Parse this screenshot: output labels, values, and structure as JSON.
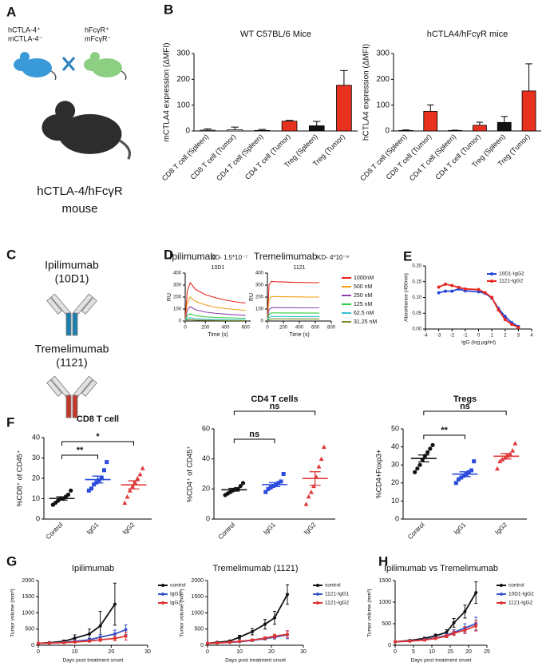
{
  "panel_labels": [
    "A",
    "B",
    "C",
    "D",
    "E",
    "F",
    "G",
    "H"
  ],
  "illustrations": {
    "mouse_left": [
      "hCTLA-4⁺",
      "mCTLA-4⁻"
    ],
    "mouse_right": [
      "hFcγR⁺",
      "mFcγR⁻"
    ],
    "mouse_result": [
      "hCTLA-4/hFcγR",
      "mouse"
    ],
    "antibodies": [
      {
        "name": "Ipilimumab",
        "clone": "(10D1)"
      },
      {
        "name": "Tremelimumab",
        "clone": "(1121)"
      }
    ]
  },
  "chart_data": [
    {
      "type": "bar",
      "title": "WT C57BL/6 Mice",
      "ylabel": "mCTLA4 expression (ΔMFI)",
      "categories": [
        "CD8 T cell (Spleen)",
        "CD8 T cell (Tumor)",
        "CD4 T cell (Spleen)",
        "CD4 T cell (Tumor)",
        "Treg (Spleen)",
        "Treg (Tumor)"
      ],
      "values": [
        3,
        5,
        2,
        38,
        20,
        177
      ],
      "errors": [
        5,
        10,
        4,
        3,
        17,
        57
      ],
      "colors": [
        "#ffffff",
        "#ffffff",
        "#ffffff",
        "#e8311f",
        "#111111",
        "#e8311f"
      ],
      "ylim": [
        0,
        300
      ],
      "yticks": [
        0,
        100,
        200,
        300
      ]
    },
    {
      "type": "bar",
      "title": "hCTLA4/hFcγR mice",
      "ylabel": "hCTLA4 expression (ΔMFI)",
      "categories": [
        "CD8 T cell (Spleen)",
        "CD8 T cell (Tumor)",
        "CD4 T cell (Spleen)",
        "CD4 T cell (Tumor)",
        "Treg (Spleen)",
        "Treg (Tumor)"
      ],
      "values": [
        2,
        76,
        2,
        22,
        33,
        155
      ],
      "errors": [
        2,
        25,
        1,
        12,
        23,
        105
      ],
      "colors": [
        "#ffffff",
        "#e8311f",
        "#ffffff",
        "#e8311f",
        "#111111",
        "#e8311f"
      ],
      "ylim": [
        0,
        300
      ],
      "yticks": [
        0,
        100,
        200,
        300
      ]
    },
    {
      "type": "line",
      "title": "Ipilimumab",
      "annotation": "KD- 1.5*10⁻⁷",
      "subtitle": "10D1",
      "xlabel": "Time (s)",
      "ylabel": "RU",
      "x": [
        0,
        20,
        50,
        100,
        200,
        300,
        400,
        500,
        600
      ],
      "xlim": [
        0,
        650
      ],
      "xticks": [
        0,
        200,
        400,
        600
      ],
      "ylim": [
        0,
        400
      ],
      "yticks": [
        0,
        100,
        200,
        300,
        400
      ],
      "series": [
        {
          "color": "#e8261f",
          "values": [
            0,
            250,
            320,
            265,
            220,
            195,
            175,
            160,
            150
          ]
        },
        {
          "color": "#f39c12",
          "values": [
            0,
            150,
            200,
            165,
            135,
            115,
            105,
            95,
            90
          ]
        },
        {
          "color": "#8e44ad",
          "values": [
            0,
            90,
            120,
            95,
            75,
            65,
            58,
            52,
            48
          ]
        },
        {
          "color": "#2ecc40",
          "values": [
            0,
            45,
            60,
            45,
            35,
            30,
            27,
            25,
            23
          ]
        },
        {
          "color": "#35c0d6",
          "values": [
            0,
            20,
            28,
            20,
            15,
            12,
            10,
            9,
            8
          ]
        },
        {
          "color": "#7d8b25",
          "values": [
            0,
            10,
            12,
            8,
            6,
            5,
            4,
            4,
            3
          ]
        }
      ]
    },
    {
      "type": "line",
      "title": "Tremelimumab",
      "annotation": "KD- 4*10⁻⁹",
      "subtitle": "1121",
      "xlabel": "Time (s)",
      "ylabel": "RU",
      "x": [
        0,
        20,
        50,
        100,
        200,
        300,
        400,
        500,
        600,
        650
      ],
      "xlim": [
        0,
        800
      ],
      "xticks": [
        0,
        200,
        400,
        600,
        800
      ],
      "ylim": [
        0,
        400
      ],
      "yticks": [
        0,
        100,
        200,
        300,
        400
      ],
      "series": [
        {
          "name": "1000nM",
          "color": "#e8261f",
          "values": [
            0,
            300,
            330,
            328,
            326,
            324,
            322,
            321,
            320,
            320
          ]
        },
        {
          "name": "500 nM",
          "color": "#f39c12",
          "values": [
            0,
            180,
            205,
            204,
            203,
            202,
            201,
            200,
            200,
            200
          ]
        },
        {
          "name": "250 nM",
          "color": "#8e44ad",
          "values": [
            0,
            95,
            112,
            112,
            111,
            111,
            110,
            110,
            110,
            110
          ]
        },
        {
          "name": "125 nM",
          "color": "#2ecc40",
          "values": [
            0,
            55,
            68,
            68,
            67,
            67,
            67,
            66,
            66,
            66
          ]
        },
        {
          "name": "62.5 nM",
          "color": "#35c0d6",
          "values": [
            0,
            28,
            38,
            38,
            38,
            37,
            37,
            37,
            37,
            37
          ]
        },
        {
          "name": "31.25 nM",
          "color": "#7d8b25",
          "values": [
            0,
            12,
            18,
            18,
            18,
            18,
            18,
            18,
            17,
            17
          ]
        }
      ]
    },
    {
      "type": "line",
      "markers": true,
      "legend": "upper right",
      "xlabel": "IgG (log µg/ml)",
      "ylabel": "Absorbance (450nm)",
      "x": [
        -3,
        -2.5,
        -2,
        -1.5,
        -1,
        0,
        0.5,
        1,
        1.5,
        2,
        2.5,
        3
      ],
      "xlim": [
        -4,
        4
      ],
      "xticks": [
        -4,
        -3,
        -2,
        -1,
        0,
        1,
        2,
        3,
        4
      ],
      "ylim": [
        0,
        0.2
      ],
      "yticks": [
        {
          "value": 0,
          "label": "0.00"
        },
        0.05,
        {
          "value": 0.1,
          "label": "0.10"
        },
        0.15,
        {
          "value": 0.2,
          "label": "0.20"
        }
      ],
      "series": [
        {
          "name": "10D1-IgG2",
          "color": "#2447d8",
          "values": [
            0.115,
            0.12,
            0.12,
            0.127,
            0.121,
            0.118,
            0.113,
            0.098,
            0.065,
            0.04,
            0.02,
            0.008
          ]
        },
        {
          "name": "1121-IgG2",
          "color": "#e8261f",
          "values": [
            0.133,
            0.142,
            0.138,
            0.132,
            0.127,
            0.125,
            0.115,
            0.1,
            0.06,
            0.03,
            0.015,
            0.005
          ]
        }
      ]
    },
    {
      "type": "strip",
      "title": "CD8 T cell",
      "ylabel": "%CD8⁺ of CD45⁺",
      "categories": [
        "Control",
        "IgG1",
        "IgG2"
      ],
      "points": [
        [
          7,
          8,
          9,
          10,
          10,
          11,
          12,
          14
        ],
        [
          14,
          15,
          17,
          18,
          19,
          20,
          24,
          28
        ],
        [
          8,
          11,
          14,
          16,
          18,
          20,
          22,
          25
        ]
      ],
      "means": [
        10.1,
        19.4,
        16.8
      ],
      "sems": [
        0.8,
        1.7,
        2.0
      ],
      "colors": [
        "#111111",
        "#2a4bdc",
        "#e03b3b"
      ],
      "markers": [
        "circle",
        "square",
        "triangle"
      ],
      "ylim": [
        0,
        40
      ],
      "yticks": [
        0,
        10,
        20,
        30,
        40
      ],
      "comparisons": [
        {
          "between": [
            "Control",
            "IgG1"
          ],
          "label": "**"
        },
        {
          "between": [
            "Control",
            "IgG2"
          ],
          "label": "*"
        }
      ]
    },
    {
      "type": "strip",
      "title": "CD4 T cells",
      "ylabel": "%CD4⁺ of CD45⁺",
      "categories": [
        "Control",
        "IgG1",
        "IgG2"
      ],
      "points": [
        [
          16,
          17,
          18,
          19,
          20,
          20,
          22,
          24
        ],
        [
          18,
          20,
          21,
          22,
          23,
          24,
          25,
          30
        ],
        [
          10,
          15,
          18,
          22,
          28,
          35,
          40,
          48
        ]
      ],
      "means": [
        19.5,
        22.9,
        27
      ],
      "sems": [
        0.9,
        1.3,
        4.5
      ],
      "colors": [
        "#111111",
        "#2a4bdc",
        "#e03b3b"
      ],
      "markers": [
        "circle",
        "square",
        "triangle"
      ],
      "ylim": [
        0,
        60
      ],
      "yticks": [
        0,
        20,
        40,
        60
      ],
      "comparisons": [
        {
          "between": [
            "Control",
            "IgG1"
          ],
          "label": "ns"
        },
        {
          "between": [
            "Control",
            "IgG2"
          ],
          "label": "ns"
        }
      ]
    },
    {
      "type": "strip",
      "title": "Tregs",
      "ylabel": "%CD4+Foxp3+",
      "categories": [
        "Control",
        "IgG1",
        "IgG2"
      ],
      "points": [
        [
          26,
          28,
          30,
          33,
          35,
          37,
          39,
          41
        ],
        [
          20,
          22,
          23,
          24,
          25,
          26,
          27,
          32
        ],
        [
          28,
          32,
          33,
          34,
          35,
          36,
          38,
          42
        ]
      ],
      "means": [
        33.6,
        24.9,
        34.8
      ],
      "sems": [
        1.9,
        1.3,
        1.5
      ],
      "colors": [
        "#111111",
        "#2a4bdc",
        "#e03b3b"
      ],
      "markers": [
        "circle",
        "square",
        "triangle"
      ],
      "ylim": [
        0,
        50
      ],
      "yticks": [
        0,
        10,
        20,
        30,
        40,
        50
      ],
      "comparisons": [
        {
          "between": [
            "Control",
            "IgG1"
          ],
          "label": "**"
        },
        {
          "between": [
            "Control",
            "IgG2"
          ],
          "label": "ns"
        }
      ]
    },
    {
      "type": "line",
      "markers": true,
      "title": "Ipilimumab",
      "xlabel": "Days post treatment onset",
      "ylabel": "Tumor volume (mm³)",
      "x": [
        0,
        3,
        7,
        10,
        14,
        17,
        21,
        24
      ],
      "xlim": [
        0,
        30
      ],
      "xticks": [
        0,
        10,
        20,
        30
      ],
      "ylim": [
        0,
        2000
      ],
      "yticks": [
        0,
        500,
        1000,
        1500,
        2000
      ],
      "series": [
        {
          "name": "control",
          "color": "#111111",
          "values": [
            60,
            80,
            120,
            220,
            350,
            600,
            1270,
            null
          ],
          "errors": [
            10,
            20,
            40,
            100,
            150,
            450,
            650,
            null
          ]
        },
        {
          "name": "IgG1",
          "color": "#3a55c8",
          "values": [
            60,
            70,
            90,
            120,
            170,
            250,
            350,
            480
          ],
          "errors": [
            10,
            15,
            20,
            30,
            50,
            80,
            120,
            150
          ]
        },
        {
          "name": "IgG2",
          "color": "#e03030",
          "values": [
            60,
            65,
            80,
            100,
            130,
            170,
            210,
            280
          ],
          "errors": [
            10,
            10,
            15,
            20,
            30,
            50,
            70,
            120
          ]
        }
      ]
    },
    {
      "type": "line",
      "markers": true,
      "title": "Tremelimumab (1121)",
      "xlabel": "Days post treatment onset",
      "ylabel": "Tumor volume (mm³)",
      "x": [
        0,
        3,
        7,
        10,
        14,
        18,
        21,
        25
      ],
      "xlim": [
        0,
        30
      ],
      "xticks": [
        0,
        10,
        20,
        30
      ],
      "ylim": [
        0,
        2000
      ],
      "yticks": [
        0,
        500,
        1000,
        1500,
        2000
      ],
      "series": [
        {
          "name": "control",
          "color": "#111111",
          "values": [
            60,
            90,
            130,
            250,
            420,
            650,
            850,
            1570
          ],
          "errors": [
            10,
            20,
            30,
            60,
            100,
            150,
            200,
            300
          ]
        },
        {
          "name": "1121-IgG1",
          "color": "#3a55c8",
          "values": [
            60,
            70,
            90,
            110,
            150,
            200,
            250,
            320
          ],
          "errors": [
            10,
            10,
            15,
            20,
            30,
            40,
            60,
            120
          ]
        },
        {
          "name": "1121-IgG2",
          "color": "#e03030",
          "values": [
            60,
            70,
            95,
            120,
            160,
            220,
            280,
            340
          ],
          "errors": [
            10,
            10,
            15,
            20,
            30,
            40,
            60,
            110
          ]
        }
      ]
    },
    {
      "type": "line",
      "markers": true,
      "title": "Ipilimumab vs Tremelimumab",
      "xlabel": "Days post treatment onset",
      "ylabel": "Tumor volume (mm³)",
      "x": [
        0,
        4,
        8,
        11,
        14,
        16,
        19,
        22
      ],
      "xlim": [
        0,
        25
      ],
      "xticks": [
        0,
        5,
        10,
        15,
        20,
        25
      ],
      "ylim": [
        0,
        1500
      ],
      "yticks": [
        0,
        500,
        1000,
        1500
      ],
      "series": [
        {
          "name": "control",
          "color": "#111111",
          "values": [
            80,
            110,
            160,
            220,
            300,
            520,
            780,
            1220
          ],
          "errors": [
            10,
            15,
            25,
            40,
            60,
            100,
            150,
            250
          ]
        },
        {
          "name": "10D1-IgG2",
          "color": "#3a55c8",
          "values": [
            80,
            100,
            130,
            170,
            230,
            300,
            400,
            500
          ],
          "errors": [
            10,
            15,
            20,
            30,
            40,
            60,
            100,
            150
          ]
        },
        {
          "name": "1121-IgG2",
          "color": "#e03030",
          "values": [
            80,
            95,
            120,
            160,
            210,
            280,
            350,
            450
          ],
          "errors": [
            10,
            15,
            20,
            25,
            35,
            50,
            80,
            120
          ]
        }
      ]
    }
  ]
}
